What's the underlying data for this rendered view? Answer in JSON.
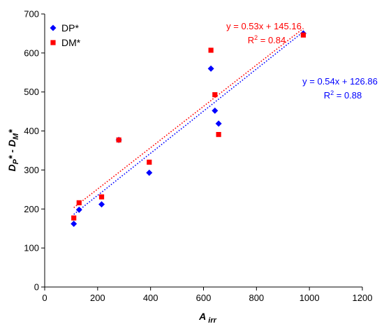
{
  "chart_data": {
    "type": "scatter",
    "xlabel": "A",
    "xlabel_sub": "irr",
    "ylabel_parts": [
      "D",
      "P",
      "* - D",
      "M",
      "*"
    ],
    "xlim": [
      0,
      1200
    ],
    "ylim": [
      0,
      700
    ],
    "x_ticks": [
      0,
      200,
      400,
      600,
      800,
      1000,
      1200
    ],
    "y_ticks": [
      0,
      100,
      200,
      300,
      400,
      500,
      600,
      700
    ],
    "legend_position": "top-left",
    "series": [
      {
        "name": "DP*",
        "marker": "diamond",
        "color": "#0000FF",
        "points": [
          {
            "x": 110,
            "y": 162
          },
          {
            "x": 130,
            "y": 198
          },
          {
            "x": 215,
            "y": 212
          },
          {
            "x": 280,
            "y": 377
          },
          {
            "x": 395,
            "y": 293
          },
          {
            "x": 628,
            "y": 560
          },
          {
            "x": 643,
            "y": 452
          },
          {
            "x": 657,
            "y": 419
          },
          {
            "x": 977,
            "y": 650
          }
        ],
        "trendline": {
          "slope": 0.54,
          "intercept": 126.86,
          "x_range": [
            110,
            977
          ],
          "equation": "y = 0.54x + 126.86",
          "r2_label": "R",
          "r2_value": " = 0.88"
        }
      },
      {
        "name": "DM*",
        "marker": "square",
        "color": "#FF0000",
        "points": [
          {
            "x": 110,
            "y": 177
          },
          {
            "x": 130,
            "y": 216
          },
          {
            "x": 215,
            "y": 231
          },
          {
            "x": 280,
            "y": 377
          },
          {
            "x": 395,
            "y": 320
          },
          {
            "x": 628,
            "y": 607
          },
          {
            "x": 643,
            "y": 493
          },
          {
            "x": 657,
            "y": 391
          },
          {
            "x": 977,
            "y": 646
          }
        ],
        "trendline": {
          "slope": 0.53,
          "intercept": 145.16,
          "x_range": [
            110,
            977
          ],
          "equation": "y = 0.53x + 145.16",
          "r2_label": "R",
          "r2_value": " = 0.84"
        }
      }
    ]
  }
}
